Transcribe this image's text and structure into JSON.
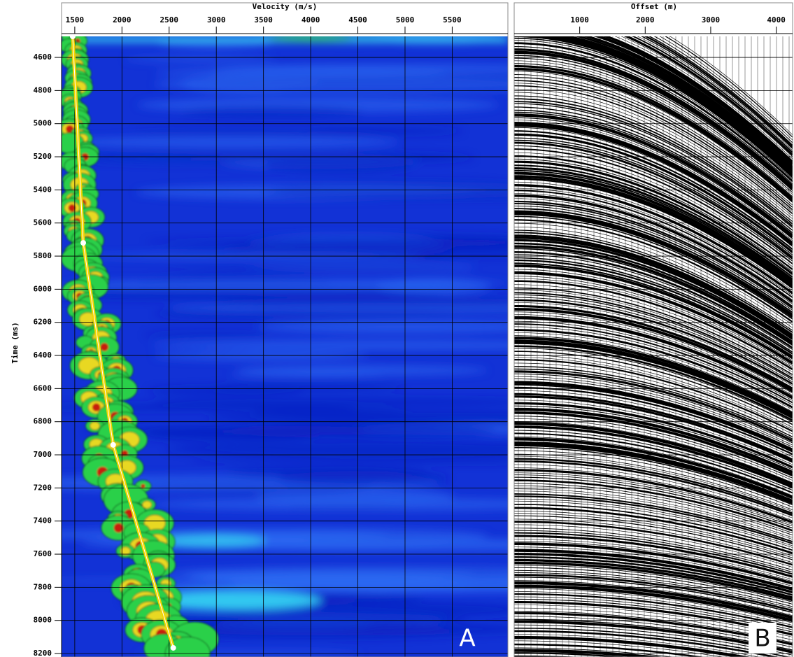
{
  "chart_data": [
    {
      "type": "semblance",
      "xlabel": "Velocity (m/s)",
      "ylabel": "Time (ms)",
      "panel_label": "A",
      "xlim": [
        1360,
        6090
      ],
      "xticks": [
        1500,
        2000,
        2500,
        3000,
        3500,
        4000,
        4500,
        5000,
        5500
      ],
      "ylim": [
        4473,
        8221
      ],
      "yticks": [
        4600,
        4800,
        5000,
        5200,
        5400,
        5600,
        5800,
        6000,
        6200,
        6400,
        6600,
        6800,
        7000,
        7200,
        7400,
        7600,
        7800,
        8000,
        8200
      ],
      "grid": true,
      "picks": {
        "x": [
          1478,
          1590,
          1907,
          2544
        ],
        "y": [
          4473,
          5720,
          6940,
          8166
        ],
        "color": "#f2d400"
      }
    },
    {
      "type": "gather",
      "xlabel": "Offset (m)",
      "panel_label": "B",
      "xlim": [
        0,
        4250
      ],
      "xticks": [
        1000,
        2000,
        3000,
        4000
      ],
      "ylim": [
        4473,
        8221
      ],
      "grid": true
    }
  ]
}
